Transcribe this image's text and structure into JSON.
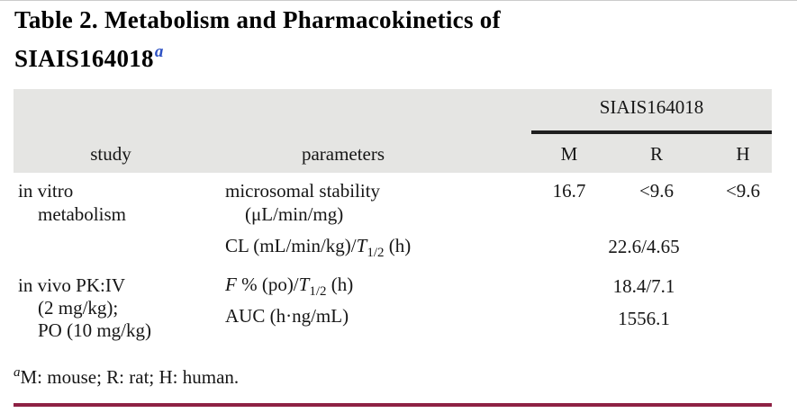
{
  "title": {
    "line1": "Table 2. Metabolism and Pharmacokinetics of",
    "compound": "SIAIS164018",
    "footnote_marker": "a"
  },
  "header": {
    "spanner": "SIAIS164018",
    "study": "study",
    "parameters": "parameters",
    "m": "M",
    "r": "R",
    "h": "H"
  },
  "rows": {
    "invitro": {
      "study1": "in vitro",
      "study2": "metabolism",
      "param1": "microsomal stability",
      "param2": "(μL/min/mg)",
      "val_m": "16.7",
      "val_r": "<9.6",
      "val_h": "<9.6"
    },
    "cl": {
      "param_pre": "CL (mL/min/kg)/",
      "param_t": "T",
      "param_sub": "1/2",
      "param_post": " (h)",
      "value": "22.6/4.65"
    },
    "invivo": {
      "study1": "in vivo PK:IV",
      "study2": "(2 mg/kg);",
      "study3": "PO (10 mg/kg)",
      "param_f": "F",
      "param_mid": " % (po)/",
      "param_t": "T",
      "param_sub": "1/2",
      "param_post": " (h)",
      "value": "18.4/7.1"
    },
    "auc": {
      "param": "AUC (h·ng/mL)",
      "value": "1556.1"
    }
  },
  "footnote": {
    "marker": "a",
    "text": "M: mouse; R: rat; H: human."
  },
  "colors": {
    "header_bg": "#e5e5e3",
    "spanner_rule": "#1f1f1f",
    "bottom_rule": "#8e2144",
    "title_marker_blue": "#2e52c4"
  }
}
